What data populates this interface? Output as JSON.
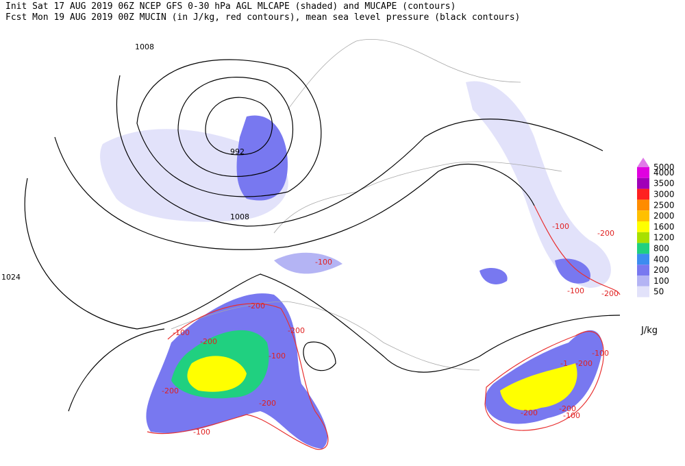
{
  "header": {
    "line1": "Init  Sat 17 AUG 2019 06Z  NCEP GFS 0-30 hPa AGL MLCAPE (shaded) and MUCAPE (contours)",
    "line2": "Fcst Mon 19 AUG 2019 00Z  MUCIN (in J/kg, red contours), mean sea level pressure (black contours)"
  },
  "pressure_labels": [
    "1008",
    "992",
    "1008",
    "1024"
  ],
  "cin_labels": [
    "-100",
    "-200",
    "-100",
    "-200",
    "-100",
    "-200",
    "-200",
    "-100",
    "-200",
    "-100",
    "-200",
    "-100",
    "-200",
    "-100",
    "-200",
    "-1",
    "-200",
    "-200",
    "-100"
  ],
  "legend": {
    "unit": "J/kg",
    "levels": [
      {
        "value": 5000,
        "color": "#e07ae8"
      },
      {
        "value": 4000,
        "color": "#e000e0"
      },
      {
        "value": 3500,
        "color": "#a000b8"
      },
      {
        "value": 3000,
        "color": "#ff2020"
      },
      {
        "value": 2500,
        "color": "#ff8c00"
      },
      {
        "value": 2000,
        "color": "#ffc000"
      },
      {
        "value": 1600,
        "color": "#ffff00"
      },
      {
        "value": 1200,
        "color": "#a8e000"
      },
      {
        "value": 800,
        "color": "#20d080"
      },
      {
        "value": 400,
        "color": "#3c8cf0"
      },
      {
        "value": 200,
        "color": "#7878f0"
      },
      {
        "value": 100,
        "color": "#b4b4f4"
      },
      {
        "value": 50,
        "color": "#e2e2fa"
      }
    ]
  }
}
